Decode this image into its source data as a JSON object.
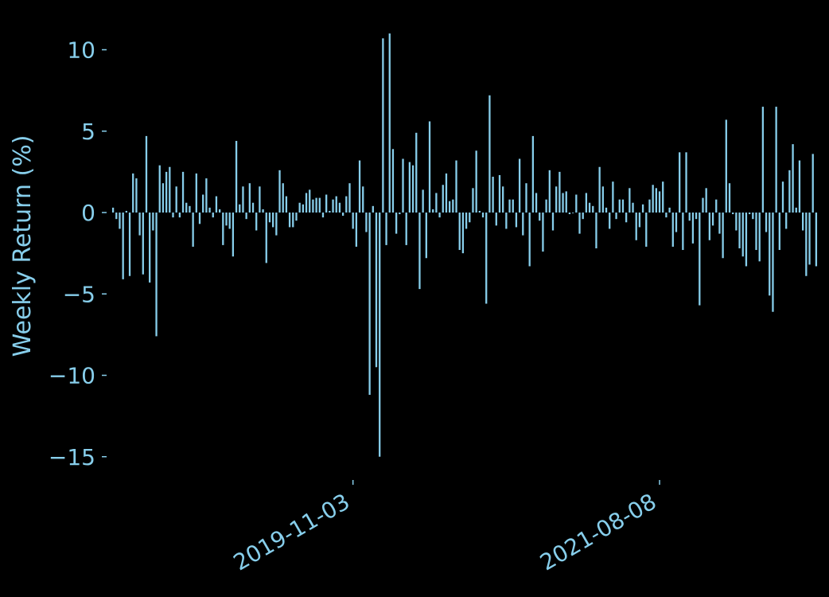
{
  "chart_data": {
    "type": "bar",
    "ylabel": "Weekly Return (%)",
    "ylim": [
      -16.5,
      11.7
    ],
    "yticks": [
      10,
      5,
      0,
      -5,
      -10,
      -15
    ],
    "xticks": [
      {
        "date": "2019-11-03",
        "label": "2019-11-03"
      },
      {
        "date": "2021-08-08",
        "label": "2021-08-08"
      }
    ],
    "x_start": "2018-06-17",
    "x_step_days": 7,
    "grid": false,
    "colors": {
      "background": "#000000",
      "bar": "#87ceeb",
      "text": "#87ceeb"
    },
    "values": [
      0.3,
      -0.4,
      -1.0,
      -4.1,
      0.1,
      -3.9,
      2.4,
      2.1,
      -1.4,
      -3.8,
      4.7,
      -4.3,
      -1.1,
      -7.6,
      2.9,
      1.8,
      2.5,
      2.8,
      -0.3,
      1.6,
      -0.3,
      2.5,
      0.6,
      0.4,
      -2.1,
      2.4,
      -0.7,
      1.1,
      2.1,
      0.3,
      -0.3,
      1.0,
      0.2,
      -2.0,
      -0.8,
      -1.0,
      -2.7,
      4.4,
      0.5,
      1.6,
      -0.4,
      1.8,
      0.6,
      -1.1,
      1.6,
      0.2,
      -3.1,
      -0.6,
      -0.9,
      -1.4,
      2.6,
      1.8,
      1.0,
      -0.9,
      -0.9,
      -0.5,
      0.6,
      0.5,
      1.2,
      1.4,
      0.8,
      0.9,
      0.9,
      -0.3,
      1.1,
      0.1,
      0.8,
      1.0,
      0.6,
      -0.2,
      1.0,
      1.8,
      -1.0,
      -2.1,
      3.2,
      1.6,
      -1.2,
      -11.2,
      0.4,
      -9.5,
      -15.0,
      10.7,
      -2.0,
      11.0,
      3.9,
      -1.3,
      -0.1,
      3.3,
      -2.0,
      3.1,
      2.9,
      4.9,
      -4.7,
      1.4,
      -2.8,
      5.6,
      0.2,
      1.2,
      -0.3,
      1.7,
      2.4,
      0.7,
      0.8,
      3.2,
      -2.3,
      -2.5,
      -1.0,
      -0.6,
      1.5,
      3.8,
      0.1,
      -0.3,
      -5.6,
      7.2,
      2.2,
      -0.8,
      2.3,
      1.6,
      -1.0,
      0.8,
      0.8,
      -0.9,
      3.3,
      -1.4,
      1.8,
      -3.3,
      4.7,
      1.2,
      -0.5,
      -2.4,
      0.8,
      2.6,
      -1.1,
      1.6,
      2.5,
      1.2,
      1.3,
      -0.1,
      0.0,
      1.1,
      -1.3,
      -0.4,
      1.2,
      0.6,
      0.4,
      -2.2,
      2.8,
      1.6,
      0.3,
      -1.0,
      1.9,
      -0.4,
      0.8,
      0.8,
      -0.6,
      1.5,
      0.6,
      -1.7,
      -0.9,
      0.5,
      -2.1,
      0.8,
      1.7,
      1.5,
      1.3,
      1.9,
      -0.3,
      0.3,
      -2.1,
      -1.2,
      3.7,
      -2.3,
      3.7,
      -0.5,
      -1.9,
      -0.4,
      -5.7,
      0.9,
      1.5,
      -1.7,
      -0.8,
      0.8,
      -1.3,
      -2.8,
      5.7,
      1.8,
      -0.1,
      -1.1,
      -2.2,
      -2.7,
      -3.3,
      -0.1,
      -0.4,
      -2.3,
      -3.0,
      6.5,
      -1.2,
      -5.1,
      -6.1,
      6.5,
      -2.3,
      1.9,
      -1.0,
      2.6,
      4.2,
      0.3,
      3.2,
      -1.1,
      -3.9,
      -3.2,
      3.6,
      -3.3
    ]
  }
}
